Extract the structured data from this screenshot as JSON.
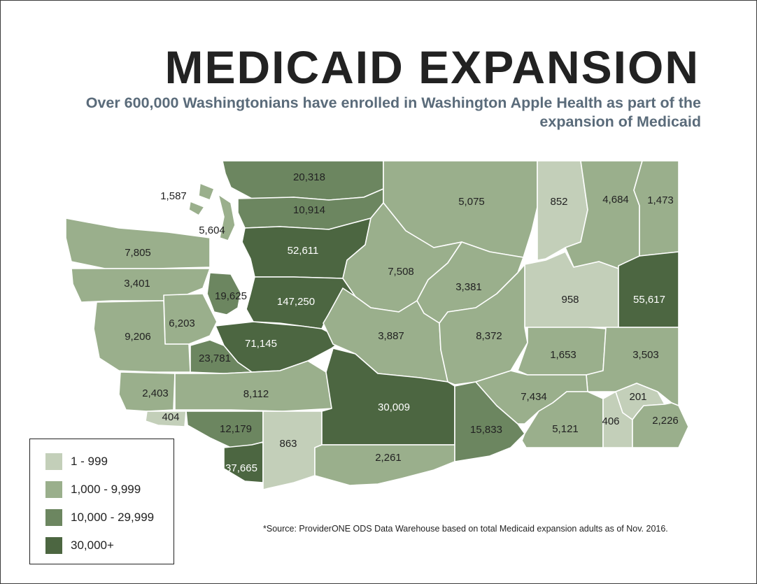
{
  "title": "MEDICAID EXPANSION",
  "subtitle": "Over 600,000 Washingtonians have enrolled in Washington Apple Health as part of the expansion of Medicaid",
  "source": "*Source: ProviderONE ODS Data Warehouse based on total Medicaid expansion adults as of Nov. 2016.",
  "colors": {
    "tier1": "#c3cfb9",
    "tier2": "#9aaf8c",
    "tier3": "#6c8660",
    "tier4": "#4c6641",
    "text_dark": "#222222",
    "text_light": "#ffffff"
  },
  "legend": [
    {
      "label": "1 - 999",
      "tier": "tier1"
    },
    {
      "label": "1,000 - 9,999",
      "tier": "tier2"
    },
    {
      "label": "10,000 - 29,999",
      "tier": "tier3"
    },
    {
      "label": "30,000+",
      "tier": "tier4"
    }
  ],
  "counties": [
    {
      "id": "whatcom",
      "value": "20,318"
    },
    {
      "id": "skagit",
      "value": "10,914"
    },
    {
      "id": "san-juan",
      "value": "1,587"
    },
    {
      "id": "island",
      "value": "5,604"
    },
    {
      "id": "snohomish",
      "value": "52,611"
    },
    {
      "id": "clallam",
      "value": "7,805"
    },
    {
      "id": "jefferson",
      "value": "3,401"
    },
    {
      "id": "kitsap",
      "value": "19,625"
    },
    {
      "id": "king",
      "value": "147,250"
    },
    {
      "id": "mason",
      "value": "6,203"
    },
    {
      "id": "grays-harbor",
      "value": "9,206"
    },
    {
      "id": "pierce",
      "value": "71,145"
    },
    {
      "id": "thurston",
      "value": "23,781"
    },
    {
      "id": "pacific",
      "value": "2,403"
    },
    {
      "id": "lewis",
      "value": "8,112"
    },
    {
      "id": "wahkiakum",
      "value": "404"
    },
    {
      "id": "cowlitz",
      "value": "12,179"
    },
    {
      "id": "clark",
      "value": "37,665"
    },
    {
      "id": "skamania",
      "value": "863"
    },
    {
      "id": "okanogan",
      "value": "5,075"
    },
    {
      "id": "ferry",
      "value": "852"
    },
    {
      "id": "stevens",
      "value": "4,684"
    },
    {
      "id": "pend-oreille",
      "value": "1,473"
    },
    {
      "id": "chelan",
      "value": "7,508"
    },
    {
      "id": "douglas",
      "value": "3,381"
    },
    {
      "id": "lincoln",
      "value": "958"
    },
    {
      "id": "spokane",
      "value": "55,617"
    },
    {
      "id": "kittitas",
      "value": "3,887"
    },
    {
      "id": "grant",
      "value": "8,372"
    },
    {
      "id": "adams",
      "value": "1,653"
    },
    {
      "id": "whitman",
      "value": "3,503"
    },
    {
      "id": "yakima",
      "value": "30,009"
    },
    {
      "id": "klickitat",
      "value": "2,261"
    },
    {
      "id": "benton",
      "value": "15,833"
    },
    {
      "id": "franklin",
      "value": "7,434"
    },
    {
      "id": "walla-walla",
      "value": "5,121"
    },
    {
      "id": "columbia",
      "value": "406"
    },
    {
      "id": "garfield",
      "value": "201"
    },
    {
      "id": "asotin",
      "value": "2,226"
    }
  ]
}
